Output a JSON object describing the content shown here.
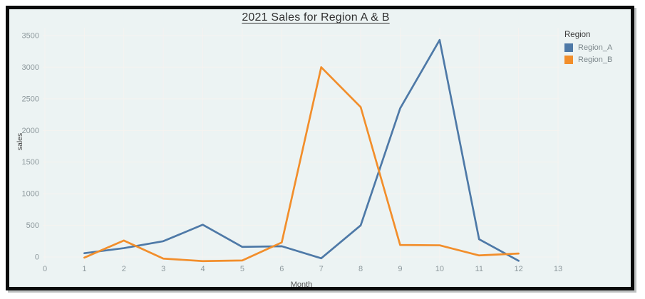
{
  "window": {
    "background": "#ffffff",
    "frame_border_color": "#0b0b0b",
    "plot_background": "#ecf3f3"
  },
  "chart": {
    "title": "2021 Sales for Region A & B",
    "xlabel": "Month",
    "ylabel": "sales"
  },
  "legend": {
    "title": "Region",
    "items": [
      {
        "label": "Region_A",
        "color": "#4e79a7"
      },
      {
        "label": "Region_B",
        "color": "#f28e2b"
      }
    ]
  },
  "chart_data": {
    "type": "line",
    "title": "2021 Sales for Region A & B",
    "xlabel": "Month",
    "ylabel": "sales",
    "x": [
      1,
      2,
      3,
      4,
      5,
      6,
      7,
      8,
      9,
      10,
      11,
      12
    ],
    "series": [
      {
        "name": "Region_A",
        "color": "#4e79a7",
        "values": [
          60,
          140,
          250,
          510,
          160,
          170,
          -20,
          500,
          2350,
          3430,
          280,
          -60
        ]
      },
      {
        "name": "Region_B",
        "color": "#f28e2b",
        "values": [
          -10,
          260,
          -25,
          -65,
          -55,
          230,
          3000,
          2370,
          190,
          185,
          25,
          55
        ]
      }
    ],
    "x_ticks": [
      0,
      1,
      2,
      3,
      4,
      5,
      6,
      7,
      8,
      9,
      10,
      11,
      12,
      13
    ],
    "y_ticks": [
      0,
      500,
      1000,
      1500,
      2000,
      2500,
      3000,
      3500
    ],
    "xlim": [
      0,
      13
    ],
    "ylim": [
      -100,
      3620
    ],
    "grid": true,
    "legend_position": "right",
    "colors": {
      "gridline": "#f6f3f0",
      "tick_label": "#8e999d"
    }
  }
}
